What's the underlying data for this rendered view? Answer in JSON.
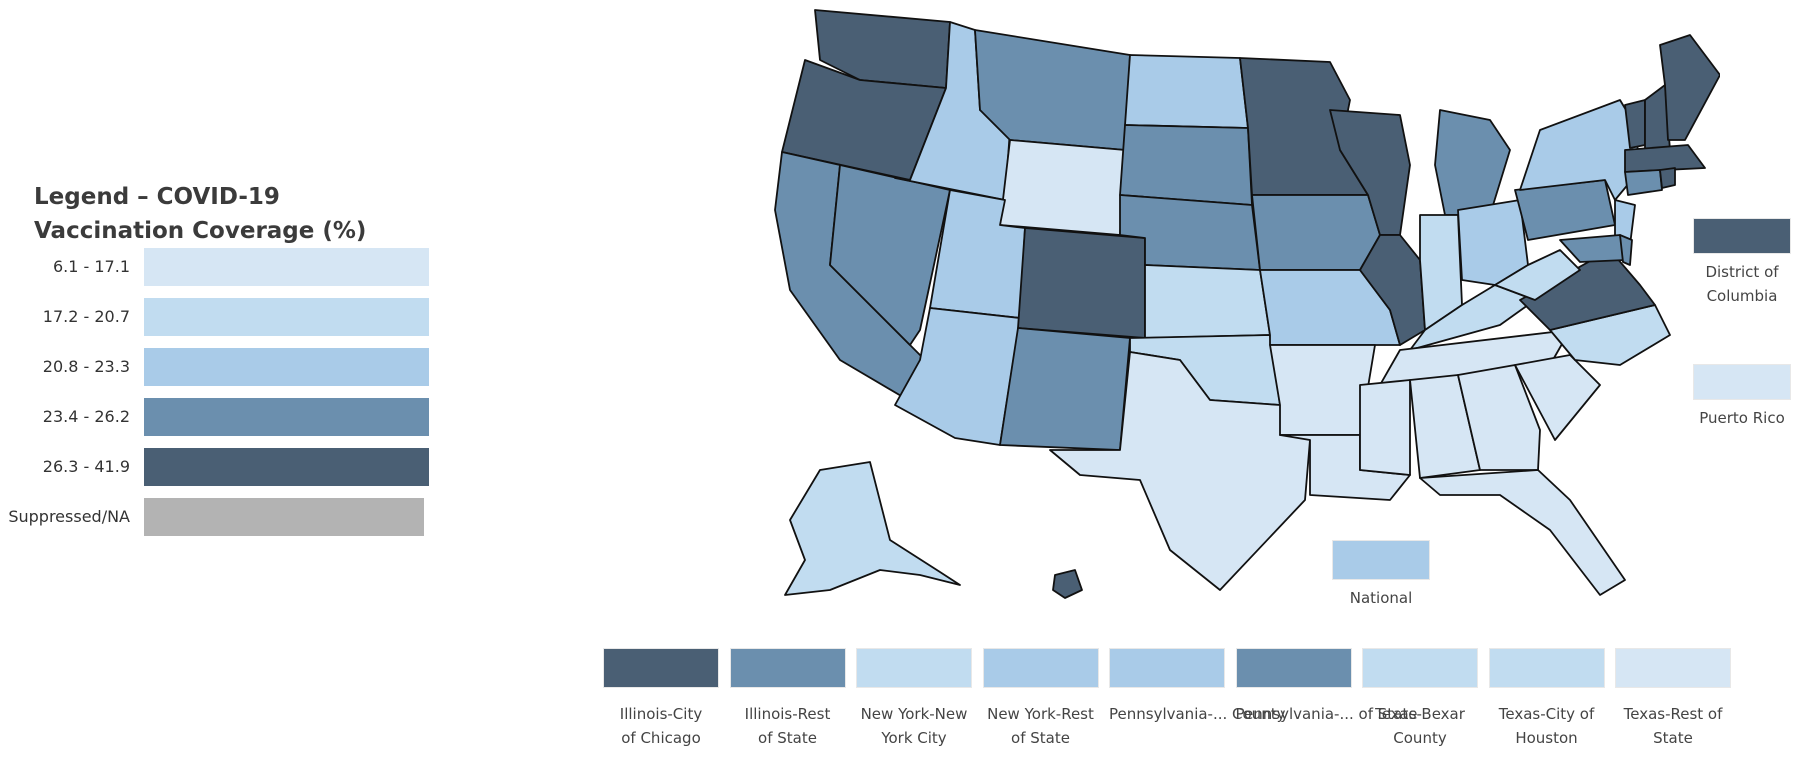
{
  "legend": {
    "title": "Legend – COVID-19 Vaccination Coverage (%)",
    "bins": [
      {
        "label": "6.1 - 17.1",
        "color": "#d6e6f4"
      },
      {
        "label": "17.2 - 20.7",
        "color": "#c1dcf0"
      },
      {
        "label": "20.8 - 23.3",
        "color": "#a9cbe8"
      },
      {
        "label": "23.4 - 26.2",
        "color": "#6b8fae"
      },
      {
        "label": "26.3 - 41.9",
        "color": "#4a5f74"
      },
      {
        "label": "Suppressed/NA",
        "color": "#b3b3b3"
      }
    ]
  },
  "map": {
    "states": [
      {
        "name": "Washington",
        "bin": "26.3 - 41.9"
      },
      {
        "name": "Oregon",
        "bin": "26.3 - 41.9"
      },
      {
        "name": "California",
        "bin": "23.4 - 26.2"
      },
      {
        "name": "Nevada",
        "bin": "23.4 - 26.2"
      },
      {
        "name": "Idaho",
        "bin": "20.8 - 23.3"
      },
      {
        "name": "Montana",
        "bin": "23.4 - 26.2"
      },
      {
        "name": "Wyoming",
        "bin": "6.1 - 17.1"
      },
      {
        "name": "Utah",
        "bin": "20.8 - 23.3"
      },
      {
        "name": "Arizona",
        "bin": "20.8 - 23.3"
      },
      {
        "name": "Colorado",
        "bin": "26.3 - 41.9"
      },
      {
        "name": "New Mexico",
        "bin": "23.4 - 26.2"
      },
      {
        "name": "North Dakota",
        "bin": "20.8 - 23.3"
      },
      {
        "name": "South Dakota",
        "bin": "23.4 - 26.2"
      },
      {
        "name": "Nebraska",
        "bin": "23.4 - 26.2"
      },
      {
        "name": "Kansas",
        "bin": "17.2 - 20.7"
      },
      {
        "name": "Oklahoma",
        "bin": "17.2 - 20.7"
      },
      {
        "name": "Texas",
        "bin": "6.1 - 17.1"
      },
      {
        "name": "Minnesota",
        "bin": "26.3 - 41.9"
      },
      {
        "name": "Iowa",
        "bin": "23.4 - 26.2"
      },
      {
        "name": "Missouri",
        "bin": "20.8 - 23.3"
      },
      {
        "name": "Arkansas",
        "bin": "6.1 - 17.1"
      },
      {
        "name": "Louisiana",
        "bin": "6.1 - 17.1"
      },
      {
        "name": "Wisconsin",
        "bin": "26.3 - 41.9"
      },
      {
        "name": "Illinois",
        "bin": "26.3 - 41.9"
      },
      {
        "name": "Michigan",
        "bin": "23.4 - 26.2"
      },
      {
        "name": "Indiana",
        "bin": "17.2 - 20.7"
      },
      {
        "name": "Ohio",
        "bin": "20.8 - 23.3"
      },
      {
        "name": "Kentucky",
        "bin": "17.2 - 20.7"
      },
      {
        "name": "Tennessee",
        "bin": "6.1 - 17.1"
      },
      {
        "name": "Mississippi",
        "bin": "6.1 - 17.1"
      },
      {
        "name": "Alabama",
        "bin": "6.1 - 17.1"
      },
      {
        "name": "Georgia",
        "bin": "6.1 - 17.1"
      },
      {
        "name": "Florida",
        "bin": "6.1 - 17.1"
      },
      {
        "name": "South Carolina",
        "bin": "6.1 - 17.1"
      },
      {
        "name": "North Carolina",
        "bin": "17.2 - 20.7"
      },
      {
        "name": "Virginia",
        "bin": "26.3 - 41.9"
      },
      {
        "name": "West Virginia",
        "bin": "17.2 - 20.7"
      },
      {
        "name": "Pennsylvania",
        "bin": "23.4 - 26.2"
      },
      {
        "name": "New York",
        "bin": "20.8 - 23.3"
      },
      {
        "name": "New Jersey",
        "bin": "20.8 - 23.3"
      },
      {
        "name": "Maryland",
        "bin": "23.4 - 26.2"
      },
      {
        "name": "Delaware",
        "bin": "23.4 - 26.2"
      },
      {
        "name": "Vermont",
        "bin": "26.3 - 41.9"
      },
      {
        "name": "New Hampshire",
        "bin": "26.3 - 41.9"
      },
      {
        "name": "Maine",
        "bin": "26.3 - 41.9"
      },
      {
        "name": "Massachusetts",
        "bin": "26.3 - 41.9"
      },
      {
        "name": "Connecticut",
        "bin": "23.4 - 26.2"
      },
      {
        "name": "Rhode Island",
        "bin": "26.3 - 41.9"
      },
      {
        "name": "Alaska",
        "bin": "17.2 - 20.7"
      },
      {
        "name": "Hawaii",
        "bin": "26.3 - 41.9"
      }
    ]
  },
  "side": {
    "dc": {
      "label": "District of Columbia",
      "bin": "26.3 - 41.9"
    },
    "pr": {
      "label": "Puerto Rico",
      "bin": "6.1 - 17.1"
    },
    "national": {
      "label": "National",
      "bin": "20.8 - 23.3"
    }
  },
  "jurisdictions": [
    {
      "label": "Illinois-City of Chicago",
      "bin": "26.3 - 41.9"
    },
    {
      "label": "Illinois-Rest of State",
      "bin": "23.4 - 26.2"
    },
    {
      "label": "New York-New York City",
      "bin": "17.2 - 20.7"
    },
    {
      "label": "New York-Rest of State",
      "bin": "20.8 - 23.3"
    },
    {
      "label": "Pennsylvania-... County",
      "bin": "20.8 - 23.3"
    },
    {
      "label": "Pennsylvania-... of State",
      "bin": "23.4 - 26.2"
    },
    {
      "label": "Texas-Bexar County",
      "bin": "17.2 - 20.7"
    },
    {
      "label": "Texas-City of Houston",
      "bin": "17.2 - 20.7"
    },
    {
      "label": "Texas-Rest of State",
      "bin": "6.1 - 17.1"
    }
  ]
}
